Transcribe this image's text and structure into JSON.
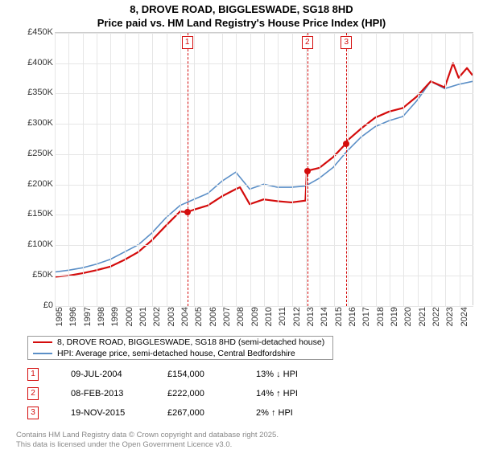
{
  "title": {
    "line1": "8, DROVE ROAD, BIGGLESWADE, SG18 8HD",
    "line2": "Price paid vs. HM Land Registry's House Price Index (HPI)"
  },
  "chart": {
    "type": "line",
    "background_color": "#ffffff",
    "grid_color": "#e6e6e6",
    "axis_color": "#333333",
    "label_fontsize": 11,
    "x": {
      "min": 1995,
      "max": 2025,
      "ticks": [
        1995,
        1996,
        1997,
        1998,
        1999,
        2000,
        2001,
        2002,
        2003,
        2004,
        2005,
        2006,
        2007,
        2008,
        2009,
        2010,
        2011,
        2012,
        2013,
        2014,
        2015,
        2016,
        2017,
        2018,
        2019,
        2020,
        2021,
        2022,
        2023,
        2024
      ]
    },
    "y": {
      "min": 0,
      "max": 450000,
      "ticks": [
        0,
        50000,
        100000,
        150000,
        200000,
        250000,
        300000,
        350000,
        400000,
        450000
      ],
      "tick_labels": [
        "£0",
        "£50K",
        "£100K",
        "£150K",
        "£200K",
        "£250K",
        "£300K",
        "£350K",
        "£400K",
        "£450K"
      ]
    },
    "series": [
      {
        "name": "price_paid",
        "color": "#d40c0c",
        "line_width": 2.2,
        "x": [
          1995,
          1996,
          1997,
          1998,
          1999,
          2000,
          2001,
          2002,
          2003,
          2004,
          2004.5,
          2005,
          2006,
          2007,
          2008,
          2008.3,
          2009,
          2010,
          2011,
          2012,
          2013,
          2013.1,
          2014,
          2015,
          2015.9,
          2016,
          2017,
          2018,
          2019,
          2020,
          2021,
          2022,
          2023,
          2023.6,
          2024,
          2024.6,
          2025
        ],
        "y": [
          47000,
          49000,
          53000,
          58000,
          64000,
          75000,
          88000,
          108000,
          132000,
          155000,
          154000,
          158000,
          165000,
          180000,
          192000,
          195000,
          167000,
          175000,
          172000,
          170000,
          173000,
          222000,
          227000,
          245000,
          267000,
          272000,
          292000,
          310000,
          320000,
          326000,
          345000,
          370000,
          360000,
          400000,
          376000,
          392000,
          380000
        ]
      },
      {
        "name": "hpi",
        "color": "#5b8fc7",
        "line_width": 1.6,
        "x": [
          1995,
          1996,
          1997,
          1998,
          1999,
          2000,
          2001,
          2002,
          2003,
          2004,
          2005,
          2006,
          2007,
          2008,
          2009,
          2010,
          2011,
          2012,
          2013,
          2014,
          2015,
          2016,
          2017,
          2018,
          2019,
          2020,
          2021,
          2022,
          2023,
          2024,
          2025
        ],
        "y": [
          55000,
          58000,
          62000,
          68000,
          76000,
          88000,
          100000,
          120000,
          145000,
          165000,
          175000,
          185000,
          205000,
          220000,
          192000,
          200000,
          195000,
          195000,
          197000,
          210000,
          228000,
          255000,
          278000,
          295000,
          305000,
          312000,
          338000,
          370000,
          358000,
          365000,
          370000
        ]
      }
    ],
    "markers": [
      {
        "n": "1",
        "x": 2004.5,
        "y": 154000,
        "color": "#d40c0c"
      },
      {
        "n": "2",
        "x": 2013.1,
        "y": 222000,
        "color": "#d40c0c"
      },
      {
        "n": "3",
        "x": 2015.9,
        "y": 267000,
        "color": "#d40c0c"
      }
    ]
  },
  "legend": {
    "items": [
      {
        "color": "#d40c0c",
        "label": "8, DROVE ROAD, BIGGLESWADE, SG18 8HD (semi-detached house)"
      },
      {
        "color": "#5b8fc7",
        "label": "HPI: Average price, semi-detached house, Central Bedfordshire"
      }
    ]
  },
  "transactions": [
    {
      "n": "1",
      "color": "#d40c0c",
      "date": "09-JUL-2004",
      "price": "£154,000",
      "delta": "13% ↓ HPI"
    },
    {
      "n": "2",
      "color": "#d40c0c",
      "date": "08-FEB-2013",
      "price": "£222,000",
      "delta": "14% ↑ HPI"
    },
    {
      "n": "3",
      "color": "#d40c0c",
      "date": "19-NOV-2015",
      "price": "£267,000",
      "delta": "2% ↑ HPI"
    }
  ],
  "footer": {
    "line1": "Contains HM Land Registry data © Crown copyright and database right 2025.",
    "line2": "This data is licensed under the Open Government Licence v3.0."
  }
}
